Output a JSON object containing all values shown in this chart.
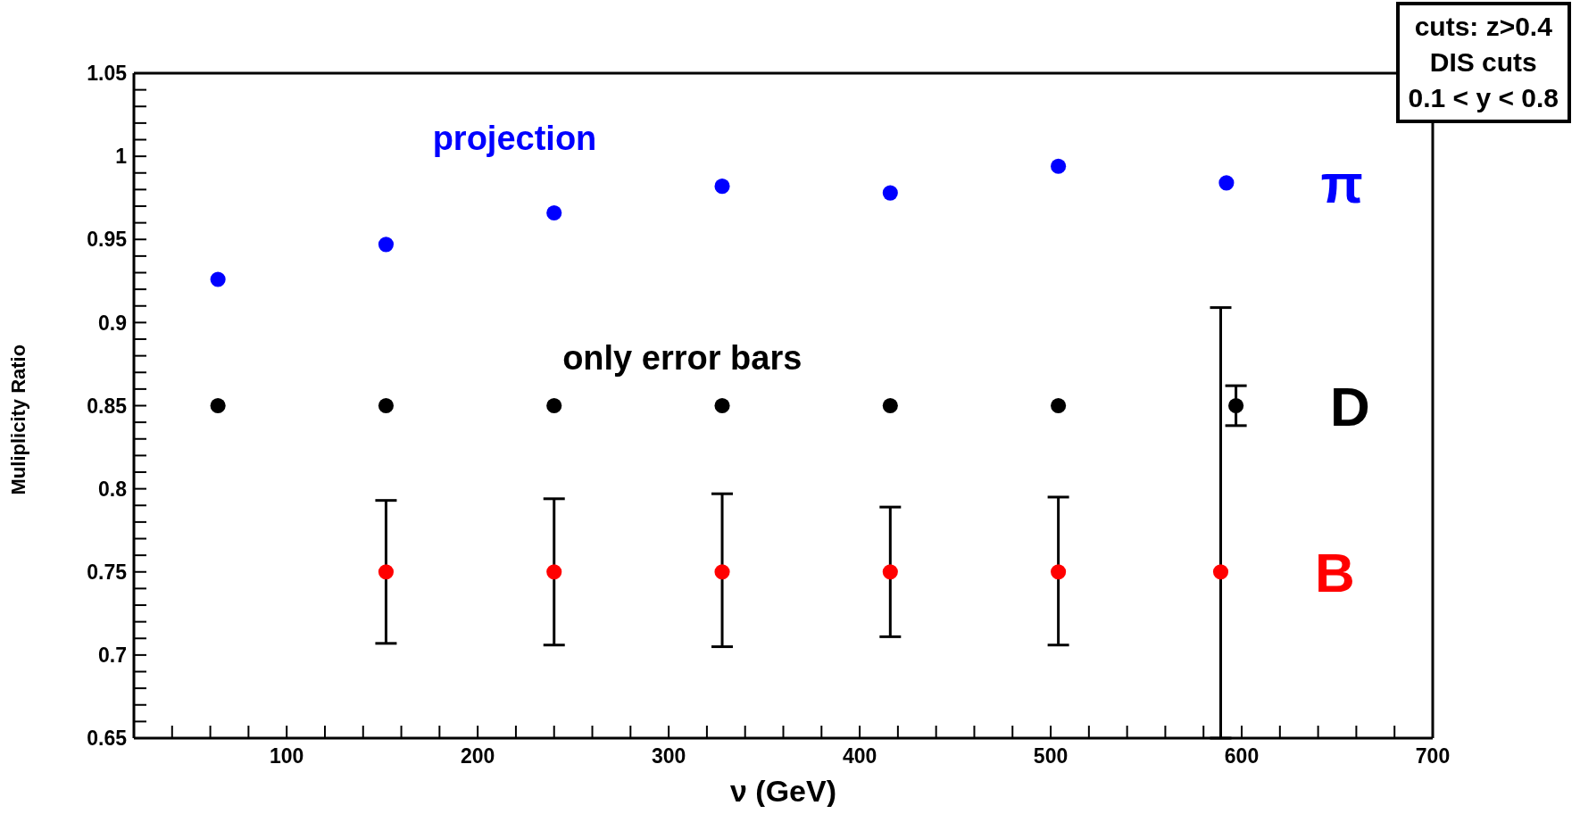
{
  "chart_data": {
    "type": "scatter",
    "xlabel": "ν (GeV)",
    "ylabel": "Muliplicity Ratio",
    "annotations": [
      "projection",
      "only error bars",
      "cuts: z>0.4",
      "DIS cuts",
      "0.1 < y < 0.8"
    ],
    "series": [
      {
        "name": "π",
        "color": "#0000ff",
        "x": [
          64,
          152,
          240,
          328,
          416,
          504,
          592
        ],
        "values": [
          0.926,
          0.947,
          0.966,
          0.982,
          0.978,
          0.994,
          0.984
        ]
      },
      {
        "name": "D",
        "color": "#000000",
        "x": [
          64,
          152,
          240,
          328,
          416,
          504,
          597
        ],
        "values": [
          0.85,
          0.85,
          0.85,
          0.85,
          0.85,
          0.85,
          0.85
        ],
        "errors": [
          null,
          null,
          null,
          null,
          null,
          null,
          0.012
        ]
      },
      {
        "name": "B",
        "color": "#ff0000",
        "x": [
          152,
          240,
          328,
          416,
          504,
          589
        ],
        "values": [
          0.75,
          0.75,
          0.75,
          0.75,
          0.75,
          0.75
        ],
        "errors": [
          [
            0.707,
            0.793
          ],
          [
            0.706,
            0.794
          ],
          [
            0.705,
            0.797
          ],
          [
            0.711,
            0.789
          ],
          [
            0.706,
            0.795
          ],
          [
            0.65,
            0.909
          ]
        ]
      }
    ],
    "xlim": [
      20,
      700
    ],
    "xticks": [
      {
        "value": 40,
        "label": null
      },
      {
        "value": 60,
        "label": null
      },
      {
        "value": 80,
        "label": null
      },
      100,
      {
        "value": 120,
        "label": null
      },
      {
        "value": 140,
        "label": null
      },
      {
        "value": 160,
        "label": null
      },
      {
        "value": 180,
        "label": null
      },
      200,
      {
        "value": 220,
        "label": null
      },
      {
        "value": 240,
        "label": null
      },
      {
        "value": 260,
        "label": null
      },
      {
        "value": 280,
        "label": null
      },
      300,
      {
        "value": 320,
        "label": null
      },
      {
        "value": 340,
        "label": null
      },
      {
        "value": 360,
        "label": null
      },
      {
        "value": 380,
        "label": null
      },
      400,
      {
        "value": 420,
        "label": null
      },
      {
        "value": 440,
        "label": null
      },
      {
        "value": 460,
        "label": null
      },
      {
        "value": 480,
        "label": null
      },
      500,
      {
        "value": 520,
        "label": null
      },
      {
        "value": 540,
        "label": null
      },
      {
        "value": 560,
        "label": null
      },
      {
        "value": 580,
        "label": null
      },
      600,
      {
        "value": 620,
        "label": null
      },
      {
        "value": 640,
        "label": null
      },
      {
        "value": 660,
        "label": null
      },
      {
        "value": 680,
        "label": null
      },
      700
    ],
    "ylim": [
      0.65,
      1.05
    ],
    "yticks": [
      0.65,
      {
        "value": 0.66,
        "label": null
      },
      {
        "value": 0.67,
        "label": null
      },
      {
        "value": 0.68,
        "label": null
      },
      {
        "value": 0.69,
        "label": null
      },
      0.7,
      {
        "value": 0.71,
        "label": null
      },
      {
        "value": 0.72,
        "label": null
      },
      {
        "value": 0.73,
        "label": null
      },
      {
        "value": 0.74,
        "label": null
      },
      0.75,
      {
        "value": 0.76,
        "label": null
      },
      {
        "value": 0.77,
        "label": null
      },
      {
        "value": 0.78,
        "label": null
      },
      {
        "value": 0.79,
        "label": null
      },
      0.8,
      {
        "value": 0.81,
        "label": null
      },
      {
        "value": 0.82,
        "label": null
      },
      {
        "value": 0.83,
        "label": null
      },
      {
        "value": 0.84,
        "label": null
      },
      0.85,
      {
        "value": 0.86,
        "label": null
      },
      {
        "value": 0.87,
        "label": null
      },
      {
        "value": 0.88,
        "label": null
      },
      {
        "value": 0.89,
        "label": null
      },
      0.9,
      {
        "value": 0.91,
        "label": null
      },
      {
        "value": 0.92,
        "label": null
      },
      {
        "value": 0.93,
        "label": null
      },
      {
        "value": 0.94,
        "label": null
      },
      0.95,
      {
        "value": 0.96,
        "label": null
      },
      {
        "value": 0.97,
        "label": null
      },
      {
        "value": 0.98,
        "label": null
      },
      {
        "value": 0.99,
        "label": null
      },
      1,
      {
        "value": 1.01,
        "label": null
      },
      {
        "value": 1.02,
        "label": null
      },
      {
        "value": 1.03,
        "label": null
      },
      {
        "value": 1.04,
        "label": null
      },
      1.05
    ],
    "grid": false,
    "legend": false,
    "marker": "circle"
  }
}
